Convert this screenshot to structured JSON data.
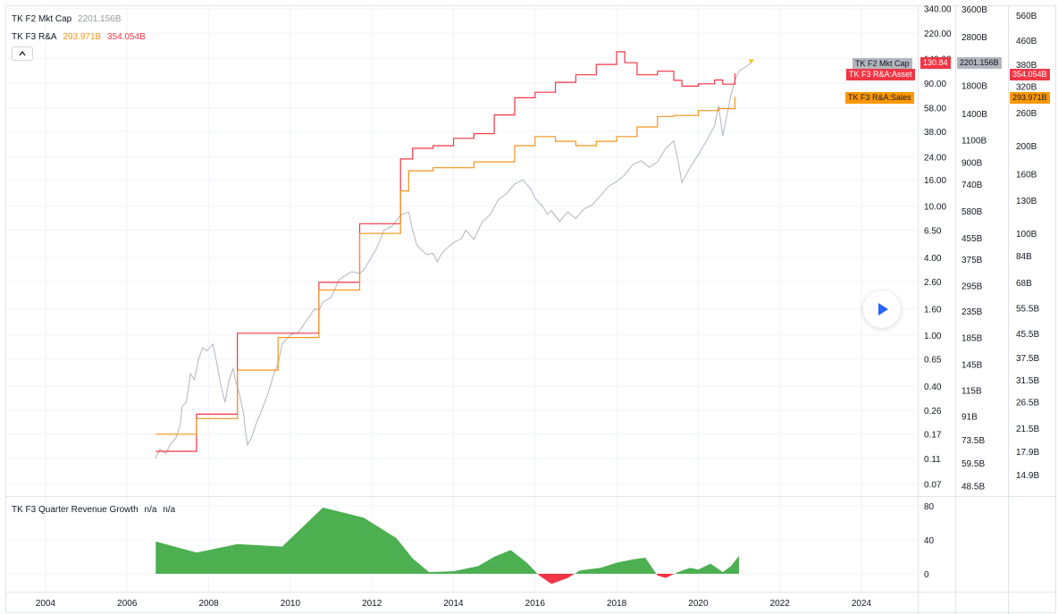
{
  "legend": {
    "series1_name": "TK F2 Mkt Cap",
    "series1_value": "2201.156B",
    "series2_name": "TK F3 R&A",
    "series2_value_a": "293.971B",
    "series2_value_b": "354.054B",
    "collapse_icon": "chevron-up-icon"
  },
  "pane2_legend": {
    "name": "TK F3 Quarter Revenue Growth",
    "value_a": "n/a",
    "value_b": "n/a"
  },
  "play_icon": "play-icon",
  "colors": {
    "mktcap": "#b2b5be",
    "assets": "#f23645",
    "sales": "#f7931a",
    "growth_pos": "#4caf50",
    "growth_neg": "#f23645"
  },
  "tags": {
    "mktcap_name": "TK F2 Mkt Cap",
    "mktcap_price": "130.84",
    "mktcap_value": "2201.156B",
    "assets_name": "TK F3 R&A:Asset",
    "assets_value": "354.054B",
    "sales_name": "TK F3 R&A:Sales",
    "sales_value": "293.971B"
  },
  "chart_data": [
    {
      "type": "line",
      "scale": "log",
      "grid": true,
      "x_axis": {
        "ticks": [
          "2004",
          "2006",
          "2008",
          "2010",
          "2012",
          "2014",
          "2016",
          "2018",
          "2020",
          "2022",
          "2024"
        ]
      },
      "price_axis": {
        "ticks": [
          "340.00",
          "220.00",
          "140.00",
          "90.00",
          "58.00",
          "38.00",
          "24.00",
          "16.00",
          "10.00",
          "6.50",
          "4.00",
          "2.60",
          "1.60",
          "1.00",
          "0.65",
          "0.40",
          "0.26",
          "0.17",
          "0.11",
          "0.07"
        ]
      },
      "mktcap_axis": {
        "ticks": [
          "3600B",
          "2800B",
          "1800B",
          "1400B",
          "1100B",
          "900B",
          "740B",
          "580B",
          "455B",
          "375B",
          "295B",
          "235B",
          "185B",
          "145B",
          "115B",
          "91B",
          "73.5B",
          "59.5B",
          "48.5B"
        ]
      },
      "assets_axis": {
        "ticks": [
          "560B",
          "460B",
          "380B",
          "320B",
          "260B",
          "200B",
          "160B",
          "130B",
          "100B",
          "84B",
          "68B",
          "55.5B",
          "45.5B",
          "37.5B",
          "31.5B",
          "26.5B",
          "21.5B",
          "17.9B",
          "14.9B"
        ]
      },
      "series": [
        {
          "name": "TK F2 Mkt Cap",
          "unit": "price",
          "points": [
            [
              2006.7,
              0.11
            ],
            [
              2006.8,
              0.13
            ],
            [
              2006.95,
              0.12
            ],
            [
              2007.05,
              0.14
            ],
            [
              2007.2,
              0.16
            ],
            [
              2007.3,
              0.2
            ],
            [
              2007.35,
              0.28
            ],
            [
              2007.45,
              0.3
            ],
            [
              2007.55,
              0.5
            ],
            [
              2007.65,
              0.45
            ],
            [
              2007.75,
              0.65
            ],
            [
              2007.85,
              0.8
            ],
            [
              2007.95,
              0.75
            ],
            [
              2008.1,
              0.85
            ],
            [
              2008.2,
              0.6
            ],
            [
              2008.3,
              0.4
            ],
            [
              2008.4,
              0.3
            ],
            [
              2008.5,
              0.45
            ],
            [
              2008.6,
              0.55
            ],
            [
              2008.65,
              0.45
            ],
            [
              2008.75,
              0.35
            ],
            [
              2008.85,
              0.25
            ],
            [
              2008.9,
              0.18
            ],
            [
              2008.95,
              0.14
            ],
            [
              2009.05,
              0.16
            ],
            [
              2009.15,
              0.2
            ],
            [
              2009.3,
              0.26
            ],
            [
              2009.45,
              0.35
            ],
            [
              2009.6,
              0.5
            ],
            [
              2009.7,
              0.6
            ],
            [
              2009.8,
              0.85
            ],
            [
              2010.0,
              1.0
            ],
            [
              2010.2,
              1.05
            ],
            [
              2010.4,
              1.3
            ],
            [
              2010.6,
              1.6
            ],
            [
              2010.7,
              1.55
            ],
            [
              2010.8,
              1.8
            ],
            [
              2011.0,
              1.95
            ],
            [
              2011.2,
              2.7
            ],
            [
              2011.5,
              3.1
            ],
            [
              2011.7,
              3.0
            ],
            [
              2011.8,
              3.2
            ],
            [
              2011.9,
              3.6
            ],
            [
              2012.1,
              4.6
            ],
            [
              2012.3,
              6.5
            ],
            [
              2012.5,
              7.0
            ],
            [
              2012.7,
              8.5
            ],
            [
              2012.9,
              9.0
            ],
            [
              2013.0,
              6.5
            ],
            [
              2013.1,
              5.0
            ],
            [
              2013.2,
              4.6
            ],
            [
              2013.35,
              4.2
            ],
            [
              2013.5,
              4.3
            ],
            [
              2013.6,
              3.7
            ],
            [
              2013.7,
              4.2
            ],
            [
              2013.8,
              4.6
            ],
            [
              2014.0,
              5.2
            ],
            [
              2014.2,
              5.6
            ],
            [
              2014.3,
              6.5
            ],
            [
              2014.5,
              5.5
            ],
            [
              2014.7,
              7.5
            ],
            [
              2014.9,
              8.6
            ],
            [
              2015.1,
              11.2
            ],
            [
              2015.3,
              12.5
            ],
            [
              2015.5,
              14.8
            ],
            [
              2015.7,
              16.0
            ],
            [
              2015.9,
              13.5
            ],
            [
              2016.0,
              11.5
            ],
            [
              2016.2,
              9.8
            ],
            [
              2016.3,
              8.6
            ],
            [
              2016.4,
              9.2
            ],
            [
              2016.6,
              7.6
            ],
            [
              2016.8,
              9.0
            ],
            [
              2017.0,
              8.0
            ],
            [
              2017.2,
              9.5
            ],
            [
              2017.4,
              10.2
            ],
            [
              2017.6,
              12.0
            ],
            [
              2017.8,
              14.2
            ],
            [
              2018.0,
              15.5
            ],
            [
              2018.2,
              17.5
            ],
            [
              2018.4,
              21.0
            ],
            [
              2018.6,
              22.5
            ],
            [
              2018.8,
              20.0
            ],
            [
              2019.0,
              22.0
            ],
            [
              2019.2,
              28.0
            ],
            [
              2019.4,
              32.0
            ],
            [
              2019.5,
              23.0
            ],
            [
              2019.6,
              15.2
            ],
            [
              2019.8,
              20.0
            ],
            [
              2020.0,
              25.0
            ],
            [
              2020.2,
              32.0
            ],
            [
              2020.4,
              42.0
            ],
            [
              2020.5,
              60.0
            ],
            [
              2020.6,
              35.0
            ],
            [
              2020.7,
              50.0
            ],
            [
              2020.8,
              72.0
            ],
            [
              2020.9,
              95.0
            ],
            [
              2021.0,
              112.0
            ],
            [
              2021.2,
              122.0
            ],
            [
              2021.3,
              130.84
            ]
          ]
        },
        {
          "name": "TK F3 R&A:Asset",
          "unit": "assets",
          "points": [
            [
              2006.7,
              17.9
            ],
            [
              2007.7,
              17.9
            ],
            [
              2007.7,
              24.0
            ],
            [
              2008.7,
              24.0
            ],
            [
              2008.7,
              45.5
            ],
            [
              2010.7,
              45.5
            ],
            [
              2010.7,
              68.0
            ],
            [
              2011.7,
              68.0
            ],
            [
              2011.7,
              108.0
            ],
            [
              2012.7,
              108.0
            ],
            [
              2012.7,
              180.0
            ],
            [
              2013.0,
              180.0
            ],
            [
              2013.0,
              196.0
            ],
            [
              2013.5,
              196.0
            ],
            [
              2013.5,
              200.0
            ],
            [
              2014.0,
              200.0
            ],
            [
              2014.0,
              212.0
            ],
            [
              2014.5,
              212.0
            ],
            [
              2014.5,
              220.0
            ],
            [
              2015.0,
              220.0
            ],
            [
              2015.0,
              255.0
            ],
            [
              2015.5,
              255.0
            ],
            [
              2015.5,
              292.0
            ],
            [
              2016.0,
              292.0
            ],
            [
              2016.0,
              305.0
            ],
            [
              2016.5,
              305.0
            ],
            [
              2016.5,
              330.0
            ],
            [
              2017.0,
              330.0
            ],
            [
              2017.0,
              350.0
            ],
            [
              2017.5,
              350.0
            ],
            [
              2017.5,
              380.0
            ],
            [
              2018.0,
              380.0
            ],
            [
              2018.0,
              420.0
            ],
            [
              2018.2,
              420.0
            ],
            [
              2018.2,
              385.0
            ],
            [
              2018.5,
              385.0
            ],
            [
              2018.5,
              350.0
            ],
            [
              2019.0,
              350.0
            ],
            [
              2019.0,
              360.0
            ],
            [
              2019.4,
              360.0
            ],
            [
              2019.4,
              335.0
            ],
            [
              2019.6,
              335.0
            ],
            [
              2019.6,
              320.0
            ],
            [
              2020.0,
              320.0
            ],
            [
              2020.0,
              326.0
            ],
            [
              2020.4,
              326.0
            ],
            [
              2020.4,
              336.0
            ],
            [
              2020.6,
              336.0
            ],
            [
              2020.6,
              325.0
            ],
            [
              2020.9,
              325.0
            ],
            [
              2020.9,
              354.054
            ]
          ]
        },
        {
          "name": "TK F3 R&A:Sales",
          "unit": "assets",
          "points": [
            [
              2006.7,
              20.5
            ],
            [
              2007.7,
              20.5
            ],
            [
              2007.7,
              23.2
            ],
            [
              2008.7,
              23.2
            ],
            [
              2008.7,
              34.0
            ],
            [
              2009.7,
              34.0
            ],
            [
              2009.7,
              44.0
            ],
            [
              2010.7,
              44.0
            ],
            [
              2010.7,
              64.0
            ],
            [
              2011.7,
              64.0
            ],
            [
              2011.7,
              100.0
            ],
            [
              2012.7,
              100.0
            ],
            [
              2012.7,
              140.0
            ],
            [
              2012.9,
              140.0
            ],
            [
              2012.9,
              164.0
            ],
            [
              2013.5,
              164.0
            ],
            [
              2013.5,
              168.0
            ],
            [
              2014.5,
              168.0
            ],
            [
              2014.5,
              176.0
            ],
            [
              2015.5,
              176.0
            ],
            [
              2015.5,
              200.0
            ],
            [
              2016.0,
              200.0
            ],
            [
              2016.0,
              215.0
            ],
            [
              2016.5,
              215.0
            ],
            [
              2016.5,
              207.0
            ],
            [
              2017.0,
              207.0
            ],
            [
              2017.0,
              200.0
            ],
            [
              2017.5,
              200.0
            ],
            [
              2017.5,
              207.0
            ],
            [
              2018.0,
              207.0
            ],
            [
              2018.0,
              215.0
            ],
            [
              2018.5,
              215.0
            ],
            [
              2018.5,
              232.0
            ],
            [
              2019.0,
              232.0
            ],
            [
              2019.0,
              252.0
            ],
            [
              2019.4,
              252.0
            ],
            [
              2019.4,
              254.0
            ],
            [
              2020.0,
              254.0
            ],
            [
              2020.0,
              264.0
            ],
            [
              2020.5,
              264.0
            ],
            [
              2020.5,
              268.0
            ],
            [
              2020.9,
              268.0
            ],
            [
              2020.9,
              293.971
            ]
          ]
        }
      ]
    },
    {
      "type": "area",
      "title": "TK F3 Quarter Revenue Growth",
      "y_axis": {
        "ticks": [
          "80",
          "40",
          "0"
        ]
      },
      "series": [
        {
          "name": "TK F3 Quarter Revenue Growth",
          "points": [
            [
              2006.7,
              38
            ],
            [
              2007.7,
              25
            ],
            [
              2008.7,
              35
            ],
            [
              2009.8,
              32
            ],
            [
              2010.8,
              78
            ],
            [
              2011.8,
              66
            ],
            [
              2012.6,
              42
            ],
            [
              2013.0,
              18
            ],
            [
              2013.4,
              2
            ],
            [
              2014.0,
              3
            ],
            [
              2014.6,
              9
            ],
            [
              2015.0,
              20
            ],
            [
              2015.4,
              28
            ],
            [
              2015.8,
              13
            ],
            [
              2016.1,
              -2
            ],
            [
              2016.4,
              -12
            ],
            [
              2016.8,
              -5
            ],
            [
              2017.1,
              4
            ],
            [
              2017.6,
              7
            ],
            [
              2018.0,
              13
            ],
            [
              2018.4,
              17
            ],
            [
              2018.7,
              19
            ],
            [
              2019.0,
              -2
            ],
            [
              2019.2,
              -5
            ],
            [
              2019.5,
              2
            ],
            [
              2019.8,
              7
            ],
            [
              2020.0,
              5
            ],
            [
              2020.3,
              12
            ],
            [
              2020.6,
              2
            ],
            [
              2020.8,
              9
            ],
            [
              2021.0,
              21
            ]
          ]
        }
      ]
    }
  ]
}
